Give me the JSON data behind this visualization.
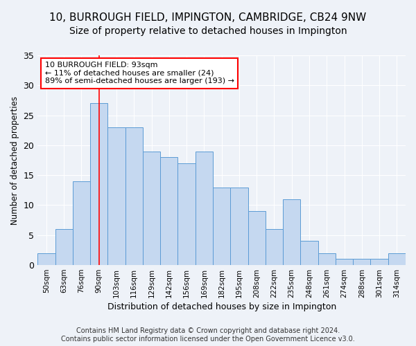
{
  "title": "10, BURROUGH FIELD, IMPINGTON, CAMBRIDGE, CB24 9NW",
  "subtitle": "Size of property relative to detached houses in Impington",
  "xlabel": "Distribution of detached houses by size in Impington",
  "ylabel": "Number of detached properties",
  "bar_labels": [
    "50sqm",
    "63sqm",
    "76sqm",
    "90sqm",
    "103sqm",
    "116sqm",
    "129sqm",
    "142sqm",
    "156sqm",
    "169sqm",
    "182sqm",
    "195sqm",
    "208sqm",
    "222sqm",
    "235sqm",
    "248sqm",
    "261sqm",
    "274sqm",
    "288sqm",
    "301sqm",
    "314sqm"
  ],
  "bar_values": [
    2,
    6,
    14,
    27,
    23,
    23,
    19,
    18,
    17,
    19,
    13,
    13,
    9,
    6,
    11,
    4,
    2,
    1,
    1,
    1,
    2
  ],
  "bar_color": "#c5d8f0",
  "bar_edge_color": "#5b9bd5",
  "annotation_text": "10 BURROUGH FIELD: 93sqm\n← 11% of detached houses are smaller (24)\n89% of semi-detached houses are larger (193) →",
  "annotation_box_color": "white",
  "annotation_box_edge": "red",
  "vline_x_index": 3,
  "vline_color": "red",
  "ylim": [
    0,
    35
  ],
  "yticks": [
    0,
    5,
    10,
    15,
    20,
    25,
    30,
    35
  ],
  "background_color": "#eef2f8",
  "plot_bg": "#eef2f8",
  "footer": "Contains HM Land Registry data © Crown copyright and database right 2024.\nContains public sector information licensed under the Open Government Licence v3.0.",
  "title_fontsize": 11,
  "subtitle_fontsize": 10,
  "annotation_fontsize": 8,
  "footer_fontsize": 7,
  "ylabel_fontsize": 8.5,
  "xlabel_fontsize": 9
}
